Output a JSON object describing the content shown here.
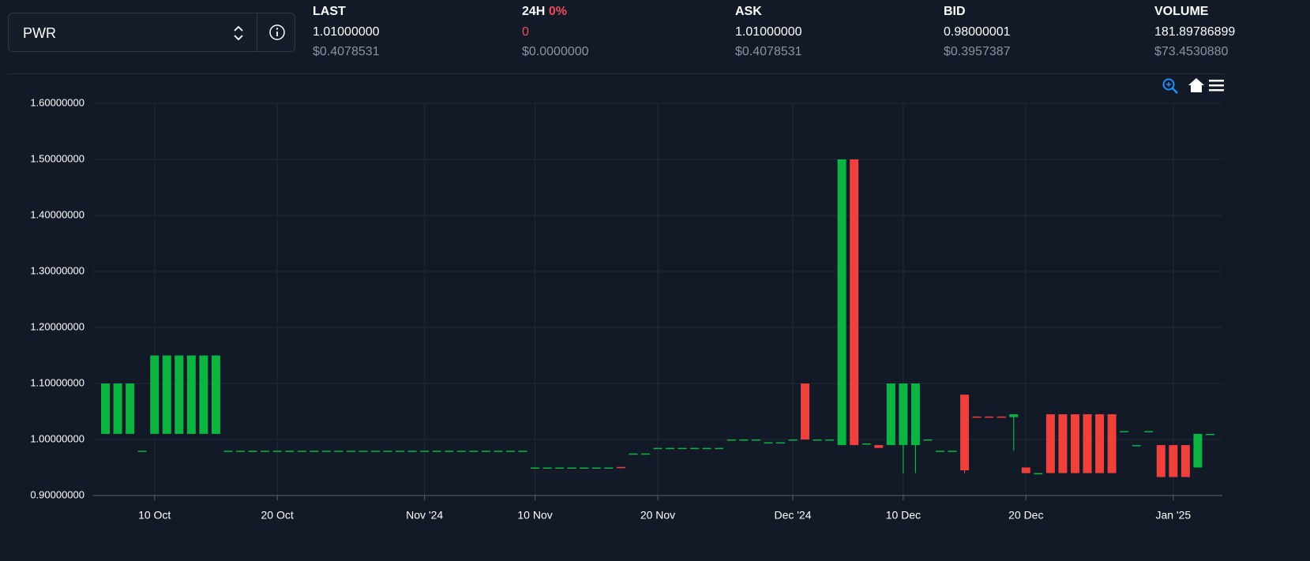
{
  "selector": {
    "symbol": "PWR"
  },
  "stats": [
    {
      "label": "LAST",
      "value": "1.01000000",
      "usd": "$0.4078531"
    },
    {
      "label": "24H",
      "change": "0%",
      "value": "0",
      "usd": "$0.0000000"
    },
    {
      "label": "ASK",
      "value": "1.01000000",
      "usd": "$0.4078531"
    },
    {
      "label": "BID",
      "value": "0.98000001",
      "usd": "$0.3957387"
    },
    {
      "label": "VOLUME",
      "value": "181.89786899",
      "usd": "$73.4530880"
    }
  ],
  "chart_data": {
    "type": "candlestick",
    "up_color": "#0cb441",
    "down_color": "#ef403c",
    "grid": true,
    "xlim": [
      "2024-10-05",
      "2025-01-05"
    ],
    "xticks": [
      {
        "value": "2024-10-10",
        "label": "10 Oct"
      },
      {
        "value": "2024-10-20",
        "label": "20 Oct"
      },
      {
        "value": "2024-11-01",
        "label": "Nov '24"
      },
      {
        "value": "2024-11-10",
        "label": "10 Nov"
      },
      {
        "value": "2024-11-20",
        "label": "20 Nov"
      },
      {
        "value": "2024-12-01",
        "label": "Dec '24"
      },
      {
        "value": "2024-12-10",
        "label": "10 Dec"
      },
      {
        "value": "2024-12-20",
        "label": "20 Dec"
      },
      {
        "value": "2025-01-01",
        "label": "Jan '25"
      }
    ],
    "ylim": [
      0.9,
      1.6
    ],
    "yticks": [
      {
        "value": 0.9,
        "label": "0.90000000"
      },
      {
        "value": 1.0,
        "label": "1.00000000"
      },
      {
        "value": 1.1,
        "label": "1.10000000"
      },
      {
        "value": 1.2,
        "label": "1.20000000"
      },
      {
        "value": 1.3,
        "label": "1.30000000"
      },
      {
        "value": 1.4,
        "label": "1.40000000"
      },
      {
        "value": 1.5,
        "label": "1.50000000"
      },
      {
        "value": 1.6,
        "label": "1.60000000"
      }
    ],
    "x": [
      "2024-10-06",
      "2024-10-07",
      "2024-10-08",
      "2024-10-09",
      "2024-10-10",
      "2024-10-11",
      "2024-10-12",
      "2024-10-13",
      "2024-10-14",
      "2024-10-15",
      "2024-10-16",
      "2024-10-17",
      "2024-10-18",
      "2024-10-19",
      "2024-10-20",
      "2024-10-21",
      "2024-10-22",
      "2024-10-23",
      "2024-10-24",
      "2024-10-25",
      "2024-10-26",
      "2024-10-27",
      "2024-10-28",
      "2024-10-29",
      "2024-10-30",
      "2024-10-31",
      "2024-11-01",
      "2024-11-02",
      "2024-11-03",
      "2024-11-04",
      "2024-11-05",
      "2024-11-06",
      "2024-11-07",
      "2024-11-08",
      "2024-11-09",
      "2024-11-10",
      "2024-11-11",
      "2024-11-12",
      "2024-11-13",
      "2024-11-14",
      "2024-11-15",
      "2024-11-16",
      "2024-11-17",
      "2024-11-18",
      "2024-11-19",
      "2024-11-20",
      "2024-11-21",
      "2024-11-22",
      "2024-11-23",
      "2024-11-24",
      "2024-11-25",
      "2024-11-26",
      "2024-11-27",
      "2024-11-28",
      "2024-11-29",
      "2024-11-30",
      "2024-12-01",
      "2024-12-02",
      "2024-12-03",
      "2024-12-04",
      "2024-12-05",
      "2024-12-06",
      "2024-12-07",
      "2024-12-08",
      "2024-12-09",
      "2024-12-10",
      "2024-12-11",
      "2024-12-12",
      "2024-12-13",
      "2024-12-14",
      "2024-12-15",
      "2024-12-16",
      "2024-12-17",
      "2024-12-18",
      "2024-12-19",
      "2024-12-20",
      "2024-12-21",
      "2024-12-22",
      "2024-12-23",
      "2024-12-24",
      "2024-12-25",
      "2024-12-26",
      "2024-12-27",
      "2024-12-28",
      "2024-12-29",
      "2024-12-30",
      "2024-12-31",
      "2025-01-01",
      "2025-01-02",
      "2025-01-03",
      "2025-01-04"
    ],
    "open": [
      1.01,
      1.01,
      1.01,
      0.98,
      1.01,
      1.01,
      1.01,
      1.01,
      1.01,
      1.01,
      0.98,
      0.98,
      0.98,
      0.98,
      0.98,
      0.98,
      0.98,
      0.98,
      0.98,
      0.98,
      0.98,
      0.98,
      0.98,
      0.98,
      0.98,
      0.98,
      0.98,
      0.98,
      0.98,
      0.98,
      0.98,
      0.98,
      0.98,
      0.98,
      0.98,
      0.95,
      0.95,
      0.95,
      0.95,
      0.95,
      0.95,
      0.95,
      0.951,
      0.975,
      0.975,
      0.985,
      0.985,
      0.985,
      0.985,
      0.985,
      0.985,
      1,
      1,
      1,
      0.995,
      0.995,
      1,
      1.1,
      1,
      1,
      0.99,
      1.5,
      0.993,
      0.99,
      0.99,
      0.99,
      0.99,
      1,
      0.98,
      0.98,
      1.08,
      1.041,
      1.041,
      1.041,
      1.04,
      0.95,
      0.94,
      1.045,
      1.045,
      1.045,
      1.045,
      1.045,
      1.045,
      1.015,
      0.99,
      1.015,
      0.99,
      0.99,
      0.99,
      0.95,
      1.01
    ],
    "high": [
      1.1,
      1.1,
      1.1,
      0.98,
      1.15,
      1.15,
      1.15,
      1.15,
      1.15,
      1.15,
      0.98,
      0.98,
      0.98,
      0.98,
      0.98,
      0.98,
      0.98,
      0.98,
      0.98,
      0.98,
      0.98,
      0.98,
      0.98,
      0.98,
      0.98,
      0.98,
      0.98,
      0.98,
      0.98,
      0.98,
      0.98,
      0.98,
      0.98,
      0.98,
      0.98,
      0.95,
      0.95,
      0.95,
      0.95,
      0.95,
      0.95,
      0.95,
      0.951,
      0.975,
      0.975,
      0.985,
      0.985,
      0.985,
      0.985,
      0.985,
      0.985,
      1,
      1,
      1,
      0.995,
      0.995,
      1,
      1.1,
      1,
      1,
      1.5,
      1.5,
      0.993,
      0.99,
      1.1,
      1.1,
      1.1,
      1,
      0.98,
      0.98,
      1.08,
      1.041,
      1.041,
      1.041,
      1.045,
      0.95,
      0.94,
      1.045,
      1.045,
      1.045,
      1.045,
      1.045,
      1.045,
      1.015,
      0.99,
      1.015,
      0.99,
      0.99,
      0.99,
      1.01,
      1.01
    ],
    "low": [
      1.01,
      1.01,
      1.01,
      0.98,
      1.01,
      1.01,
      1.01,
      1.01,
      1.01,
      1.01,
      0.98,
      0.98,
      0.98,
      0.98,
      0.98,
      0.98,
      0.98,
      0.98,
      0.98,
      0.98,
      0.98,
      0.98,
      0.98,
      0.98,
      0.98,
      0.98,
      0.98,
      0.98,
      0.98,
      0.98,
      0.98,
      0.98,
      0.98,
      0.98,
      0.98,
      0.95,
      0.95,
      0.95,
      0.95,
      0.95,
      0.95,
      0.95,
      0.95,
      0.975,
      0.975,
      0.985,
      0.985,
      0.985,
      0.985,
      0.985,
      0.985,
      1,
      1,
      1,
      0.995,
      0.995,
      1,
      1,
      1,
      1,
      0.99,
      0.99,
      0.993,
      0.985,
      0.99,
      0.94,
      0.94,
      1,
      0.98,
      0.98,
      0.94,
      1.04,
      1.04,
      1.04,
      0.98,
      0.94,
      0.94,
      0.94,
      0.94,
      0.94,
      0.94,
      0.94,
      0.94,
      1.015,
      0.99,
      1.015,
      0.933,
      0.933,
      0.933,
      0.95,
      1.01
    ],
    "close": [
      1.1,
      1.1,
      1.1,
      0.98,
      1.15,
      1.15,
      1.15,
      1.15,
      1.15,
      1.15,
      0.98,
      0.98,
      0.98,
      0.98,
      0.98,
      0.98,
      0.98,
      0.98,
      0.98,
      0.98,
      0.98,
      0.98,
      0.98,
      0.98,
      0.98,
      0.98,
      0.98,
      0.98,
      0.98,
      0.98,
      0.98,
      0.98,
      0.98,
      0.98,
      0.98,
      0.95,
      0.95,
      0.95,
      0.95,
      0.95,
      0.95,
      0.95,
      0.95,
      0.975,
      0.975,
      0.985,
      0.985,
      0.985,
      0.985,
      0.985,
      0.985,
      1,
      1,
      1,
      0.995,
      0.995,
      1,
      1,
      1,
      1,
      1.5,
      0.99,
      0.993,
      0.985,
      1.1,
      1.1,
      1.1,
      1,
      0.98,
      0.98,
      0.945,
      1.04,
      1.04,
      1.04,
      1.045,
      0.94,
      0.94,
      0.94,
      0.94,
      0.94,
      0.94,
      0.94,
      0.94,
      1.015,
      0.99,
      1.015,
      0.933,
      0.933,
      0.933,
      1.01,
      1.01
    ]
  }
}
